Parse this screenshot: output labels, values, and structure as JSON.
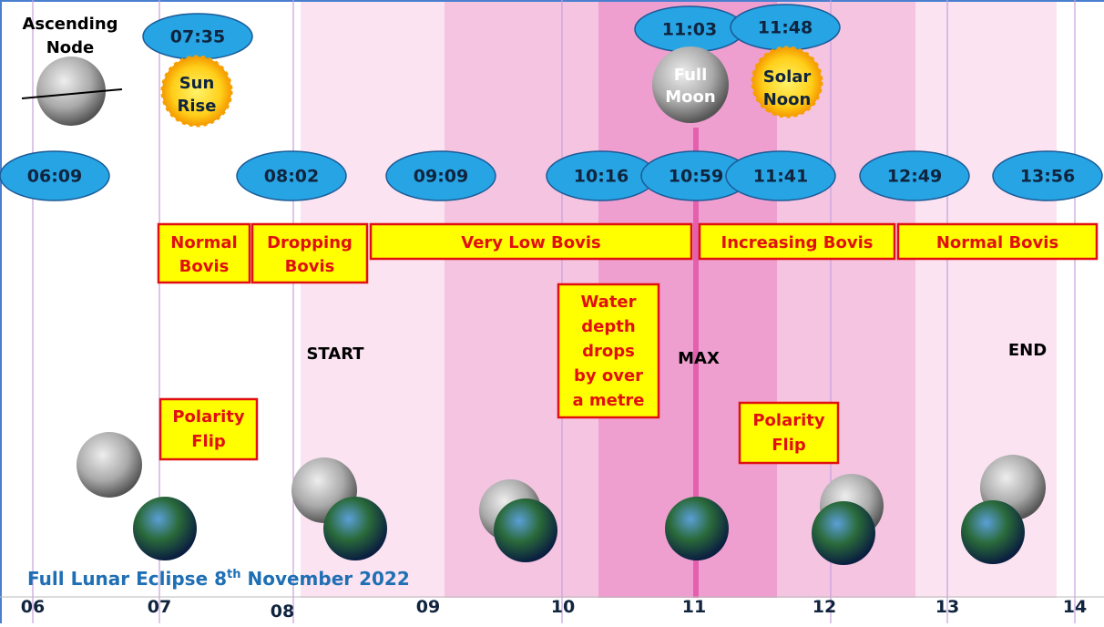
{
  "ascending_node": [
    "Ascending",
    "Node"
  ],
  "top_bubbles": [
    "07:35",
    "11:03",
    "11:48"
  ],
  "sun_rise": [
    "Sun",
    "Rise"
  ],
  "full_moon": [
    "Full",
    "Moon"
  ],
  "solar_noon": [
    "Solar",
    "Noon"
  ],
  "time_bubbles": [
    "06:09",
    "08:02",
    "09:09",
    "10:16",
    "10:59",
    "11:41",
    "12:49",
    "13:56"
  ],
  "bovis_boxes": [
    [
      "Normal",
      "Bovis"
    ],
    [
      "Dropping",
      "Bovis"
    ],
    [
      "Very Low Bovis"
    ],
    [
      "Increasing Bovis"
    ],
    [
      "Normal Bovis"
    ]
  ],
  "notes": [
    [
      "Polarity",
      "Flip"
    ],
    [
      "Water",
      "depth",
      "drops",
      "by over",
      "a metre"
    ],
    [
      "Polarity",
      "Flip"
    ]
  ],
  "phases": [
    "START",
    "MAX",
    "END"
  ],
  "title": [
    "Full Lunar Eclipse 8",
    "th",
    " November 2022"
  ],
  "hours": [
    "06",
    "07",
    "08",
    "09",
    "10",
    "11",
    "12",
    "13",
    "14"
  ]
}
